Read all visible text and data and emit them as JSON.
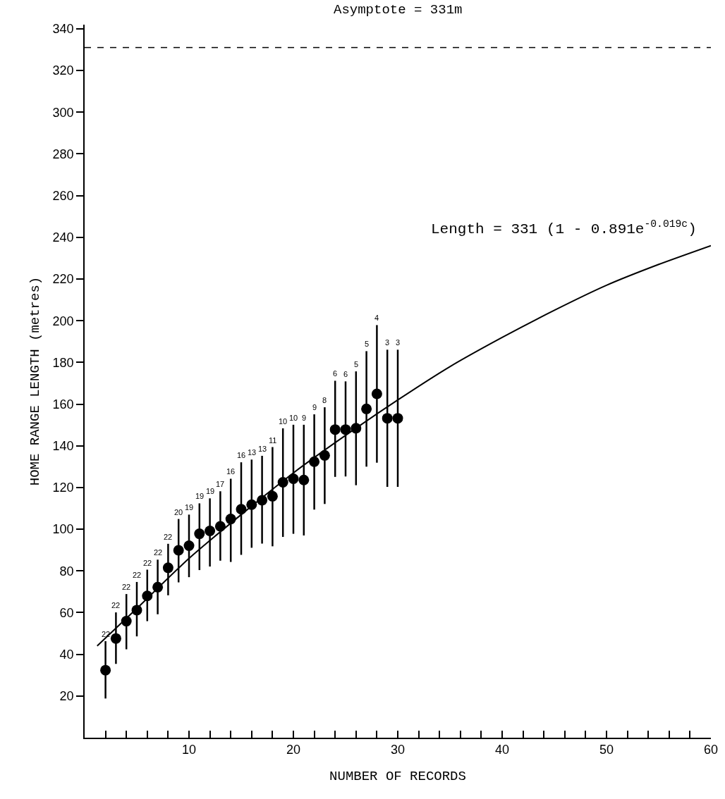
{
  "chart_data": {
    "type": "scatter",
    "xlabel": "NUMBER OF RECORDS",
    "ylabel": "HOME RANGE LENGTH (metres)",
    "xlim": [
      0,
      60
    ],
    "ylim": [
      0,
      342
    ],
    "xticks": [
      {
        "value": 2,
        "label": null
      },
      {
        "value": 4,
        "label": null
      },
      {
        "value": 6,
        "label": null
      },
      {
        "value": 8,
        "label": null
      },
      10,
      {
        "value": 12,
        "label": null
      },
      {
        "value": 14,
        "label": null
      },
      {
        "value": 16,
        "label": null
      },
      {
        "value": 18,
        "label": null
      },
      20,
      {
        "value": 22,
        "label": null
      },
      {
        "value": 24,
        "label": null
      },
      {
        "value": 26,
        "label": null
      },
      {
        "value": 28,
        "label": null
      },
      30,
      {
        "value": 32,
        "label": null
      },
      {
        "value": 34,
        "label": null
      },
      {
        "value": 36,
        "label": null
      },
      {
        "value": 38,
        "label": null
      },
      40,
      {
        "value": 42,
        "label": null
      },
      {
        "value": 44,
        "label": null
      },
      {
        "value": 46,
        "label": null
      },
      {
        "value": 48,
        "label": null
      },
      50,
      {
        "value": 52,
        "label": null
      },
      {
        "value": 54,
        "label": null
      },
      {
        "value": 56,
        "label": null
      },
      {
        "value": 58,
        "label": null
      },
      60
    ],
    "yticks": [
      20,
      40,
      60,
      80,
      100,
      120,
      140,
      160,
      180,
      200,
      220,
      240,
      260,
      280,
      300,
      320,
      340
    ],
    "series": [
      {
        "color": "#000000",
        "marker": "circle",
        "x": [
          2,
          3,
          4,
          5,
          6,
          7,
          8,
          9,
          10,
          11,
          12,
          13,
          14,
          15,
          16,
          17,
          18,
          19,
          20,
          21,
          22,
          23,
          24,
          25,
          26,
          27,
          28,
          29,
          30
        ],
        "values": [
          32.4,
          47.6,
          55.9,
          61.2,
          68.0,
          72.2,
          81.5,
          89.9,
          92.1,
          97.8,
          99.2,
          101.4,
          104.9,
          109.6,
          111.8,
          113.9,
          115.8,
          122.5,
          124.2,
          123.6,
          132.4,
          135.4,
          147.8,
          147.8,
          148.4,
          157.7,
          164.9,
          153.2,
          153.2
        ],
        "errors": [
          [
            18.8,
            46.3
          ],
          [
            35.4,
            60.1
          ],
          [
            42.4,
            68.9
          ],
          [
            48.6,
            74.7
          ],
          [
            55.9,
            80.6
          ],
          [
            59.2,
            85.4
          ],
          [
            68.3,
            93.0
          ],
          [
            74.5,
            104.9
          ],
          [
            77.0,
            107.0
          ],
          [
            80.4,
            112.4
          ],
          [
            82.1,
            114.8
          ],
          [
            84.9,
            118.2
          ],
          [
            84.3,
            124.2
          ],
          [
            87.7,
            132.1
          ],
          [
            91.1,
            133.4
          ],
          [
            93.1,
            135.2
          ],
          [
            91.8,
            139.4
          ],
          [
            96.3,
            148.4
          ],
          [
            97.8,
            150.1
          ],
          [
            97.0,
            150.1
          ],
          [
            109.4,
            155.1
          ],
          [
            112.1,
            158.5
          ],
          [
            125.1,
            171.2
          ],
          [
            125.3,
            170.9
          ],
          [
            121.1,
            175.7
          ],
          [
            130.0,
            185.4
          ],
          [
            131.9,
            197.9
          ],
          [
            120.3,
            186.1
          ],
          [
            120.3,
            186.1
          ]
        ]
      },
      {
        "type": "line",
        "color": "#000000",
        "marker": "none",
        "line_style": "solid",
        "x": [
          1.2,
          5,
          10,
          15,
          20,
          25,
          30,
          35,
          40,
          45,
          50,
          55,
          60
        ],
        "values": [
          44,
          62,
          86,
          107,
          127,
          145,
          162,
          178,
          192,
          205,
          217,
          227,
          236
        ]
      }
    ],
    "ref_lines": [
      {
        "axis": "y",
        "value": 331,
        "label": "Asymptote = 331m",
        "color": "#000000",
        "line_style": "dashed"
      }
    ],
    "annotations": [
      "Length = 331 (1 - 0.891e$^{-0.019c}$)",
      {
        "text": "22",
        "x": 2,
        "y": 46.3
      },
      {
        "text": "22",
        "x": 3,
        "y": 60.1
      },
      {
        "text": "22",
        "x": 4,
        "y": 68.9
      },
      {
        "text": "22",
        "x": 5,
        "y": 74.7
      },
      {
        "text": "22",
        "x": 6,
        "y": 80.6
      },
      {
        "text": "22",
        "x": 7,
        "y": 85.4
      },
      {
        "text": "22",
        "x": 8,
        "y": 93.0
      },
      {
        "text": "20",
        "x": 9,
        "y": 104.9
      },
      {
        "text": "19",
        "x": 10,
        "y": 107.0
      },
      {
        "text": "19",
        "x": 11,
        "y": 112.4
      },
      {
        "text": "19",
        "x": 12,
        "y": 114.8
      },
      {
        "text": "17",
        "x": 13,
        "y": 118.2
      },
      {
        "text": "16",
        "x": 14,
        "y": 124.2
      },
      {
        "text": "16",
        "x": 15,
        "y": 132.1
      },
      {
        "text": "13",
        "x": 16,
        "y": 133.4
      },
      {
        "text": "13",
        "x": 17,
        "y": 135.2
      },
      {
        "text": "11",
        "x": 18,
        "y": 139.4
      },
      {
        "text": "10",
        "x": 19,
        "y": 148.4
      },
      {
        "text": "10",
        "x": 20,
        "y": 150.1
      },
      {
        "text": "9",
        "x": 21,
        "y": 150.1
      },
      {
        "text": "9",
        "x": 22,
        "y": 155.1
      },
      {
        "text": "8",
        "x": 23,
        "y": 158.5
      },
      {
        "text": "6",
        "x": 24,
        "y": 171.2
      },
      {
        "text": "6",
        "x": 25,
        "y": 170.9
      },
      {
        "text": "5",
        "x": 26,
        "y": 175.7
      },
      {
        "text": "5",
        "x": 27,
        "y": 185.4
      },
      {
        "text": "4",
        "x": 28,
        "y": 197.9
      },
      {
        "text": "3",
        "x": 29,
        "y": 186.1
      },
      {
        "text": "3",
        "x": 30,
        "y": 186.1
      }
    ]
  }
}
